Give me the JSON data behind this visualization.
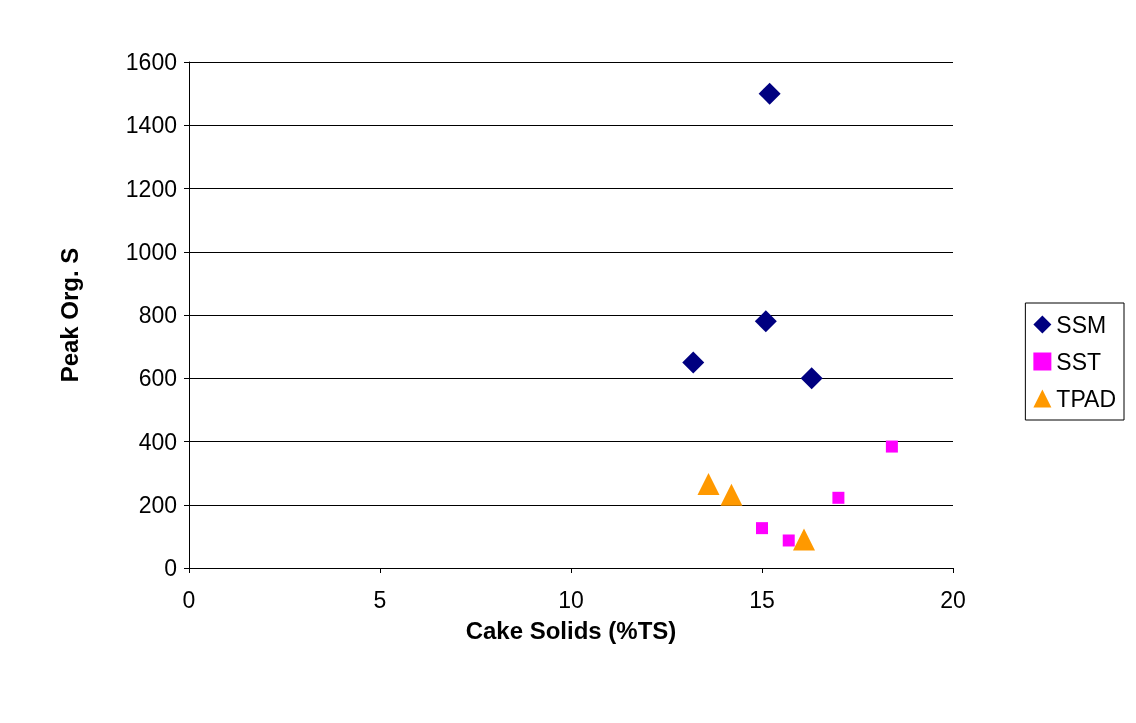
{
  "chart_data": {
    "type": "scatter",
    "xlabel": "Cake Solids (%TS)",
    "ylabel": "Peak Org. S",
    "xlim": [
      0,
      20
    ],
    "xticks": [
      0,
      5,
      10,
      15,
      20
    ],
    "ylim": [
      0,
      1600
    ],
    "yticks": [
      0,
      200,
      400,
      600,
      800,
      1000,
      1200,
      1400,
      1600
    ],
    "grid": "y",
    "legend": "right",
    "series": [
      {
        "name": "SSM",
        "color": "#000080",
        "marker": "diamond",
        "x": [
          15.2,
          15.1,
          13.2,
          16.3
        ],
        "values": [
          1500,
          780,
          650,
          600
        ]
      },
      {
        "name": "SST",
        "color": "#ff00ff",
        "marker": "square",
        "x": [
          15.0,
          15.7,
          17.0,
          18.4
        ],
        "values": [
          126,
          87,
          222,
          384
        ]
      },
      {
        "name": "TPAD",
        "color": "#ff9900",
        "marker": "triangle",
        "x": [
          13.6,
          14.2,
          16.1
        ],
        "values": [
          266,
          232,
          90
        ]
      }
    ]
  }
}
